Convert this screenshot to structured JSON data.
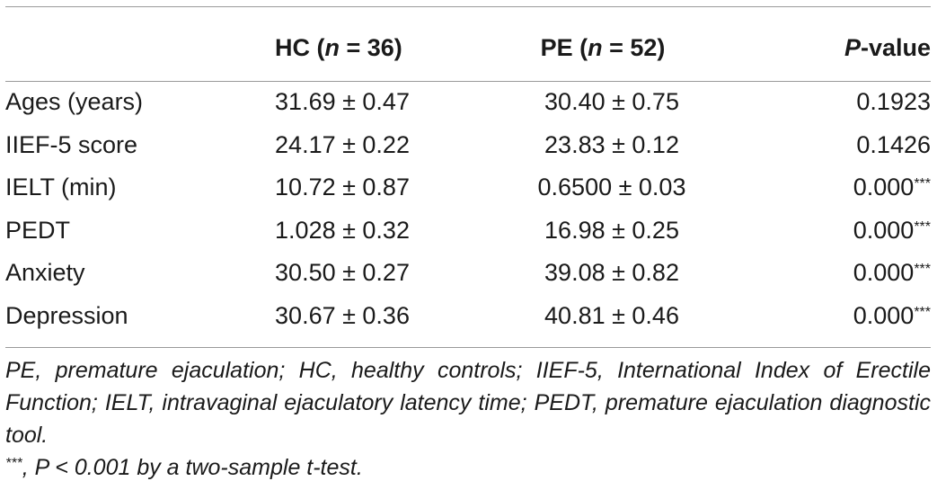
{
  "table": {
    "headers": {
      "col0": "",
      "col1_main": "HC (",
      "col1_n": "n",
      "col1_rest": " = 36)",
      "col2_main": "PE (",
      "col2_n": "n",
      "col2_rest": " = 52)",
      "col3_p": "P",
      "col3_rest": "-value"
    },
    "rows": [
      {
        "label": "Ages (years)",
        "hc": "31.69 ± 0.47",
        "pe": "30.40 ± 0.75",
        "p": "0.1923",
        "stars": ""
      },
      {
        "label": "IIEF-5 score",
        "hc": "24.17 ± 0.22",
        "pe": "23.83 ± 0.12",
        "p": "0.1426",
        "stars": ""
      },
      {
        "label": "IELT (min)",
        "hc": "10.72 ± 0.87",
        "pe": "0.6500 ± 0.03",
        "p": "0.000",
        "stars": "***"
      },
      {
        "label": "PEDT",
        "hc": "1.028 ± 0.32",
        "pe": "16.98 ± 0.25",
        "p": "0.000",
        "stars": "***"
      },
      {
        "label": "Anxiety",
        "hc": "30.50 ± 0.27",
        "pe": "39.08 ± 0.82",
        "p": "0.000",
        "stars": "***"
      },
      {
        "label": "Depression",
        "hc": "30.67 ± 0.36",
        "pe": "40.81 ± 0.46",
        "p": "0.000",
        "stars": "***"
      }
    ]
  },
  "notes": {
    "abbreviations": "PE, premature ejaculation; HC, healthy controls; IIEF-5, International Index of Erectile Function; IELT, intravaginal ejaculatory latency time; PEDT, premature ejaculation diagnostic tool.",
    "sig_stars": "***",
    "sig_text": ", P < 0.001 by a two-sample t-test."
  }
}
